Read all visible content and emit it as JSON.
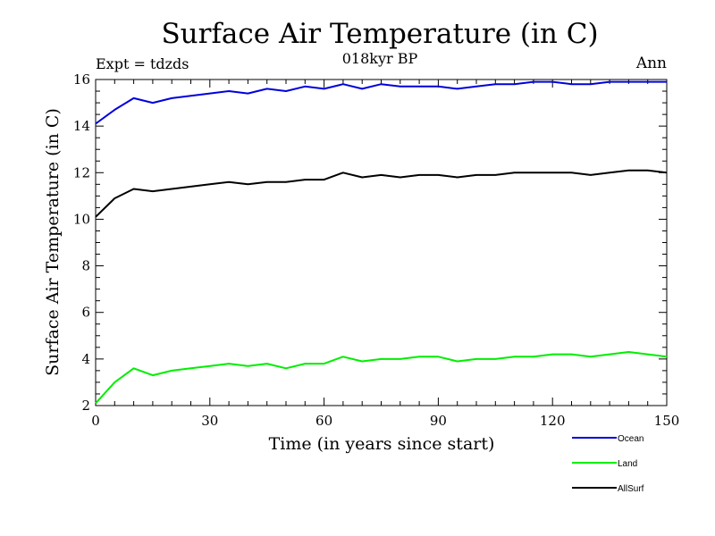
{
  "chart_data": {
    "type": "line",
    "title": "Surface Air Temperature (in C)",
    "subtitle": "018kyr BP",
    "experiment_label": "Expt = tdzds",
    "period_label": "Ann",
    "xlabel": "Time (in years since start)",
    "ylabel": "Surface Air Temperature (in C)",
    "xlim": [
      0,
      150
    ],
    "ylim": [
      2,
      16
    ],
    "xticks": [
      0,
      30,
      60,
      90,
      120,
      150
    ],
    "yticks": [
      2,
      4,
      6,
      8,
      10,
      12,
      14,
      16
    ],
    "grid": false,
    "legend_position": "bottom-right",
    "x": [
      0,
      5,
      10,
      15,
      20,
      25,
      30,
      35,
      40,
      45,
      50,
      55,
      60,
      65,
      70,
      75,
      80,
      85,
      90,
      95,
      100,
      105,
      110,
      115,
      120,
      125,
      130,
      135,
      140,
      145,
      150
    ],
    "series": [
      {
        "name": "Ocean",
        "color": "#0000dd",
        "values": [
          14.1,
          14.7,
          15.2,
          15.0,
          15.2,
          15.3,
          15.4,
          15.5,
          15.4,
          15.6,
          15.5,
          15.7,
          15.6,
          15.8,
          15.6,
          15.8,
          15.7,
          15.7,
          15.7,
          15.6,
          15.7,
          15.8,
          15.8,
          15.9,
          15.9,
          15.8,
          15.8,
          15.9,
          15.9,
          15.9,
          15.9
        ]
      },
      {
        "name": "Land",
        "color": "#00ee00",
        "values": [
          2.1,
          3.0,
          3.6,
          3.3,
          3.5,
          3.6,
          3.7,
          3.8,
          3.7,
          3.8,
          3.6,
          3.8,
          3.8,
          4.1,
          3.9,
          4.0,
          4.0,
          4.1,
          4.1,
          3.9,
          4.0,
          4.0,
          4.1,
          4.1,
          4.2,
          4.2,
          4.1,
          4.2,
          4.3,
          4.2,
          4.1
        ]
      },
      {
        "name": "AllSurf",
        "color": "#000000",
        "values": [
          10.1,
          10.9,
          11.3,
          11.2,
          11.3,
          11.4,
          11.5,
          11.6,
          11.5,
          11.6,
          11.6,
          11.7,
          11.7,
          12.0,
          11.8,
          11.9,
          11.8,
          11.9,
          11.9,
          11.8,
          11.9,
          11.9,
          12.0,
          12.0,
          12.0,
          12.0,
          11.9,
          12.0,
          12.1,
          12.1,
          12.0
        ]
      }
    ]
  }
}
